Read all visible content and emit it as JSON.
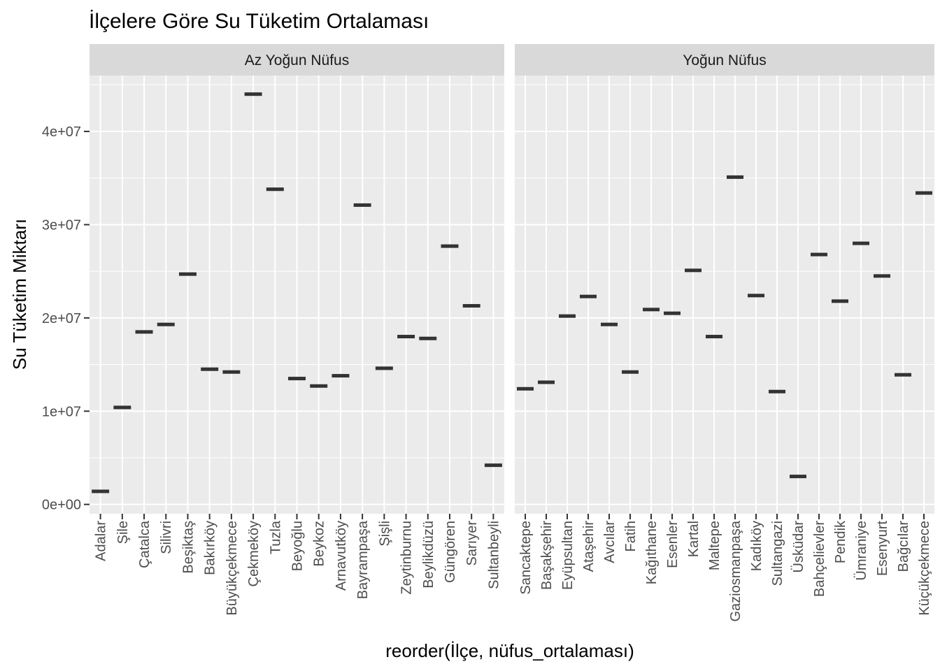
{
  "chart_data": {
    "type": "crossbar",
    "title": "İlçelere Göre Su Tüketim Ortalaması",
    "xlabel": "reorder(İlçe, nüfus_ortalaması)",
    "ylabel": "Su Tüketim Miktarı",
    "ylim": [
      -1000000,
      46000000
    ],
    "yticks": [
      0,
      10000000,
      20000000,
      30000000,
      40000000
    ],
    "ytick_labels": [
      "0e+00",
      "1e+07",
      "2e+07",
      "3e+07",
      "4e+07"
    ],
    "grid": true,
    "panels": [
      {
        "name": "Az Yoğun Nüfus",
        "categories": [
          "Adalar",
          "Şile",
          "Çatalca",
          "Silivri",
          "Beşiktaş",
          "Bakırköy",
          "Büyükçekmece",
          "Çekmeköy",
          "Tuzla",
          "Beyoğlu",
          "Beykoz",
          "Arnavutköy",
          "Bayrampaşa",
          "Şişli",
          "Zeytinburnu",
          "Beylikdüzü",
          "Güngören",
          "Sarıyer",
          "Sultanbeyli"
        ],
        "values": [
          1400000,
          10400000,
          18500000,
          19300000,
          24700000,
          14500000,
          14200000,
          44000000,
          33800000,
          13500000,
          12700000,
          13800000,
          32100000,
          14600000,
          18000000,
          17800000,
          27700000,
          21300000,
          4200000
        ]
      },
      {
        "name": "Yoğun Nüfus",
        "categories": [
          "Sancaktepe",
          "Başakşehir",
          "Eyüpsultan",
          "Ataşehir",
          "Avcılar",
          "Fatih",
          "Kağıthane",
          "Esenler",
          "Kartal",
          "Maltepe",
          "Gaziosmanpaşa",
          "Kadıköy",
          "Sultangazi",
          "Üsküdar",
          "Bahçelievler",
          "Pendik",
          "Ümraniye",
          "Esenyurt",
          "Bağcılar",
          "Küçükçekmece"
        ],
        "values": [
          12400000,
          13100000,
          20200000,
          22300000,
          19300000,
          14200000,
          20900000,
          20500000,
          25100000,
          18000000,
          35100000,
          22400000,
          12100000,
          3000000,
          26800000,
          21800000,
          28000000,
          24500000,
          13900000,
          33400000
        ]
      }
    ]
  }
}
